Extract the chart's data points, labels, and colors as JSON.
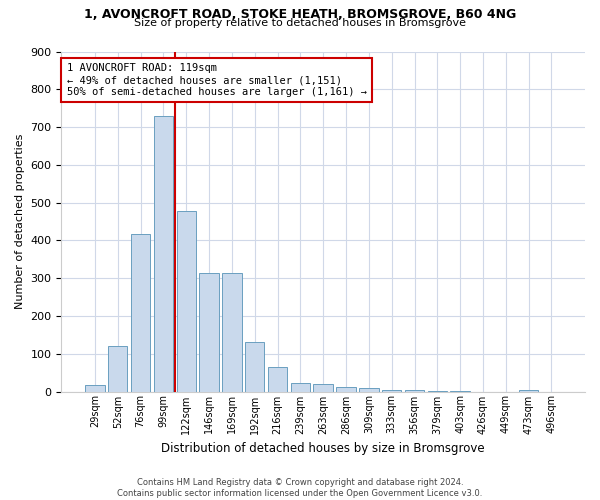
{
  "title_line1": "1, AVONCROFT ROAD, STOKE HEATH, BROMSGROVE, B60 4NG",
  "title_line2": "Size of property relative to detached houses in Bromsgrove",
  "xlabel": "Distribution of detached houses by size in Bromsgrove",
  "ylabel": "Number of detached properties",
  "categories": [
    "29sqm",
    "52sqm",
    "76sqm",
    "99sqm",
    "122sqm",
    "146sqm",
    "169sqm",
    "192sqm",
    "216sqm",
    "239sqm",
    "263sqm",
    "286sqm",
    "309sqm",
    "333sqm",
    "356sqm",
    "379sqm",
    "403sqm",
    "426sqm",
    "449sqm",
    "473sqm",
    "496sqm"
  ],
  "values": [
    18,
    120,
    418,
    730,
    478,
    315,
    315,
    130,
    65,
    22,
    20,
    12,
    8,
    5,
    3,
    2,
    1,
    0,
    0,
    5,
    0
  ],
  "bar_color": "#c9d9ec",
  "bar_edge_color": "#6a9fc0",
  "property_line_x": 3.5,
  "property_line_color": "#cc0000",
  "annotation_text": "1 AVONCROFT ROAD: 119sqm\n← 49% of detached houses are smaller (1,151)\n50% of semi-detached houses are larger (1,161) →",
  "annotation_box_color": "#ffffff",
  "annotation_box_edge": "#cc0000",
  "ylim": [
    0,
    900
  ],
  "yticks": [
    0,
    100,
    200,
    300,
    400,
    500,
    600,
    700,
    800,
    900
  ],
  "footer": "Contains HM Land Registry data © Crown copyright and database right 2024.\nContains public sector information licensed under the Open Government Licence v3.0.",
  "bg_color": "#ffffff",
  "grid_color": "#d0d8e8",
  "title_fontsize": 9,
  "subtitle_fontsize": 8,
  "ylabel_fontsize": 8,
  "xlabel_fontsize": 8.5,
  "ytick_fontsize": 8,
  "xtick_fontsize": 7,
  "footer_fontsize": 6,
  "annotation_fontsize": 7.5
}
